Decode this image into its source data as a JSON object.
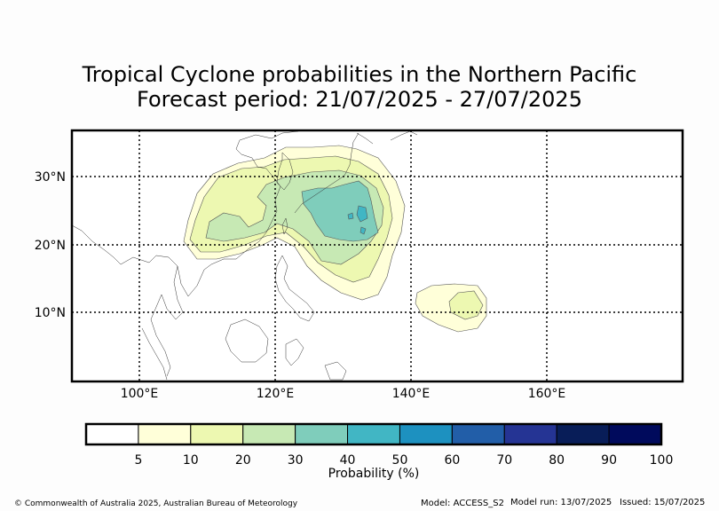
{
  "title": {
    "line1": "Tropical Cyclone probabilities in the Northern Pacific",
    "line2": "Forecast period: 21/07/2025 - 27/07/2025"
  },
  "map": {
    "lat_labels": [
      "30°N",
      "20°N",
      "10°N"
    ],
    "lon_labels": [
      "100°E",
      "120°E",
      "140°E",
      "160°E"
    ]
  },
  "colorbar": {
    "colors": [
      "#ffffff",
      "#ffffd9",
      "#edf8b1",
      "#c7e9b4",
      "#7fcdbb",
      "#41b6c4",
      "#1d91c0",
      "#225ea8",
      "#253494",
      "#081d58",
      "#000a5c"
    ],
    "tick_labels": [
      "5",
      "10",
      "20",
      "30",
      "40",
      "50",
      "60",
      "70",
      "80",
      "90",
      "100"
    ],
    "label": "Probability (%)"
  },
  "footer": {
    "copyright": "© Commonwealth of Australia 2025, Australian Bureau of Meteorology",
    "model": "Model: ACCESS_S2",
    "model_run": "Model run: 13/07/2025",
    "issued": "Issued: 15/07/2025"
  }
}
